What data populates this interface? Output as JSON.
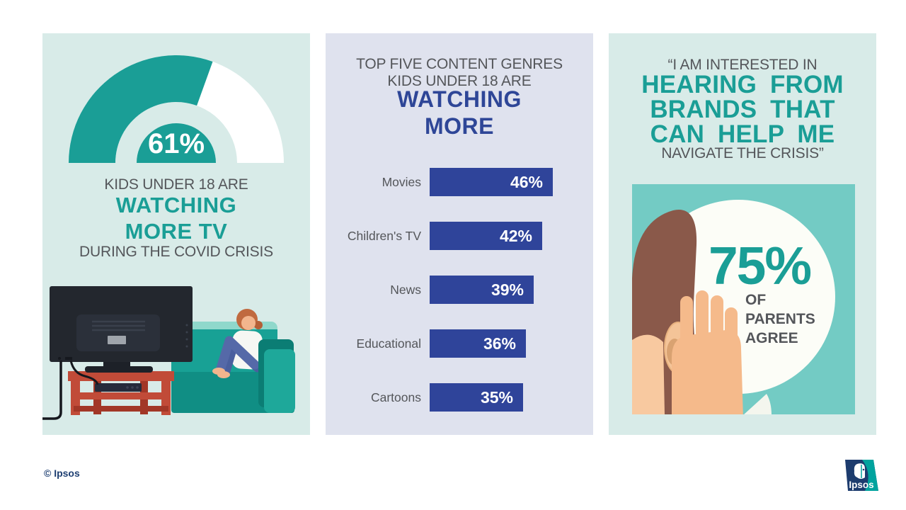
{
  "colors": {
    "teal_accent": "#1a9e96",
    "teal_panel_bg": "#d8ebe8",
    "lavender_panel_bg": "#dfe2ee",
    "bar_blue": "#2f449a",
    "gray_text": "#54565a",
    "square_teal": "#73cbc4",
    "circle_white": "#fcfdf7",
    "footer_navy": "#1e3f72",
    "gauge_remainder": "#ffffff"
  },
  "panel1": {
    "gauge": {
      "value": 61,
      "label": "61%"
    },
    "kicker": "KIDS UNDER 18 ARE",
    "headline_line1": "WATCHING",
    "headline_line2": "MORE TV",
    "subtext": "DURING THE COVID CRISIS",
    "illustration": "kid-watching-tv-on-couch"
  },
  "panel2": {
    "kicker_line1": "TOP FIVE CONTENT GENRES",
    "kicker_line2": "KIDS UNDER 18 ARE",
    "headline_line1": "WATCHING",
    "headline_line2": "MORE"
  },
  "panel3": {
    "quote_prefix": "“I AM INTERESTED IN",
    "headline_line1": "HEARING FROM",
    "headline_line2": "BRANDS THAT",
    "headline_line3": "CAN HELP ME",
    "quote_suffix": "NAVIGATE THE CRISIS”",
    "stat": {
      "value": 75,
      "label": "75%",
      "caption_line1": "OF",
      "caption_line2": "PARENTS",
      "caption_line3": "AGREE"
    },
    "illustration": "hand-cupped-to-ear"
  },
  "footer": {
    "copyright": "© Ipsos",
    "logo_text": "Ipsos"
  },
  "chart_data": [
    {
      "type": "pie",
      "variant": "half-donut-gauge",
      "title": "KIDS UNDER 18 ARE WATCHING MORE TV DURING THE COVID CRISIS",
      "labels": [
        "Watching more TV",
        "Remainder"
      ],
      "values": [
        61,
        39
      ],
      "value_label": "61%",
      "colors": [
        "#1a9e96",
        "#ffffff"
      ]
    },
    {
      "type": "bar",
      "orientation": "horizontal",
      "title": "TOP FIVE CONTENT GENRES KIDS UNDER 18 ARE WATCHING MORE",
      "categories": [
        "Movies",
        "Children's TV",
        "News",
        "Educational",
        "Cartoons"
      ],
      "values": [
        46,
        42,
        39,
        36,
        35
      ],
      "value_labels": [
        "46%",
        "42%",
        "39%",
        "36%",
        "35%"
      ],
      "xlim": [
        0,
        100
      ],
      "bar_color": "#2f449a",
      "legend": "none",
      "grid": "off"
    },
    {
      "type": "stat",
      "title": "“I AM INTERESTED IN HEARING FROM BRANDS THAT CAN HELP ME NAVIGATE THE CRISIS”",
      "value": 75,
      "label": "75% OF PARENTS AGREE"
    }
  ]
}
